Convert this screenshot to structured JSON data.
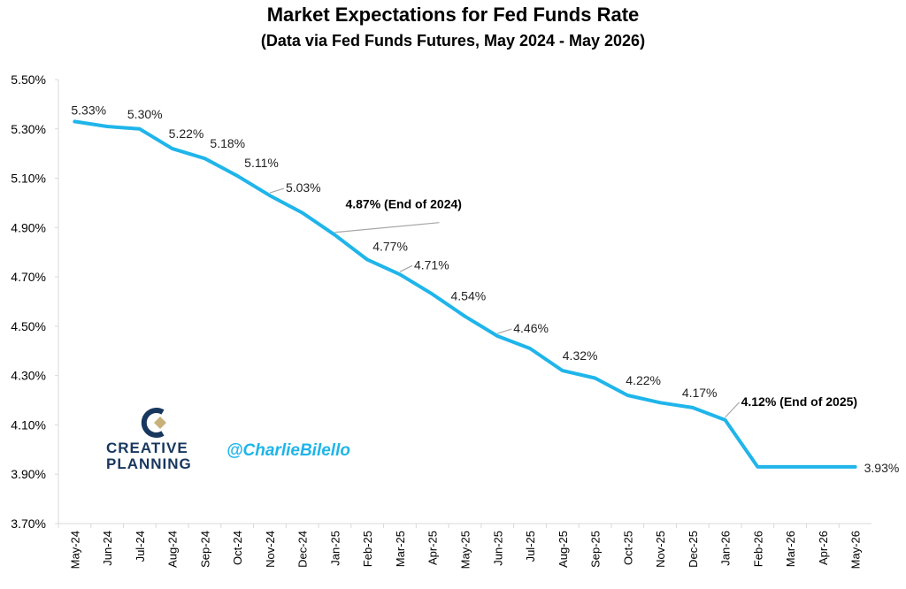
{
  "chart_data": {
    "type": "line",
    "title": "Market Expectations for Fed Funds Rate",
    "subtitle": "(Data via Fed Funds Futures, May 2024 - May 2026)",
    "xlabel": "",
    "ylabel": "",
    "categories": [
      "May-24",
      "Jun-24",
      "Jul-24",
      "Aug-24",
      "Sep-24",
      "Oct-24",
      "Nov-24",
      "Dec-24",
      "Jan-25",
      "Feb-25",
      "Mar-25",
      "Apr-25",
      "May-25",
      "Jun-25",
      "Jul-25",
      "Aug-25",
      "Sep-25",
      "Oct-25",
      "Nov-25",
      "Dec-25",
      "Jan-26",
      "Feb-26",
      "Mar-26",
      "Apr-26",
      "May-26"
    ],
    "series": [
      {
        "values": [
          5.33,
          5.31,
          5.3,
          5.22,
          5.18,
          5.11,
          5.03,
          4.96,
          4.87,
          4.77,
          4.71,
          4.63,
          4.54,
          4.46,
          4.41,
          4.32,
          4.29,
          4.22,
          4.19,
          4.17,
          4.12,
          3.93,
          3.93,
          3.93,
          3.93
        ]
      }
    ],
    "ylim": [
      3.7,
      5.5
    ],
    "yticks": [
      "3.70%",
      "3.90%",
      "4.10%",
      "4.30%",
      "4.50%",
      "4.70%",
      "4.90%",
      "5.10%",
      "5.30%",
      "5.50%"
    ],
    "line_color": "#1fb5ea",
    "grid": false,
    "data_labels": [
      {
        "index": 0,
        "text": "5.33%",
        "bold": false
      },
      {
        "index": 2,
        "text": "5.30%",
        "bold": false
      },
      {
        "index": 3,
        "text": "5.22%",
        "bold": false
      },
      {
        "index": 4,
        "text": "5.18%",
        "bold": false
      },
      {
        "index": 5,
        "text": "5.11%",
        "bold": false
      },
      {
        "index": 6,
        "text": "5.03%",
        "bold": false
      },
      {
        "index": 8,
        "text": "4.87% (End of 2024)",
        "bold": true
      },
      {
        "index": 9,
        "text": "4.77%",
        "bold": false
      },
      {
        "index": 10,
        "text": "4.71%",
        "bold": false
      },
      {
        "index": 12,
        "text": "4.54%",
        "bold": false
      },
      {
        "index": 13,
        "text": "4.46%",
        "bold": false
      },
      {
        "index": 15,
        "text": "4.32%",
        "bold": false
      },
      {
        "index": 17,
        "text": "4.22%",
        "bold": false
      },
      {
        "index": 19,
        "text": "4.17%",
        "bold": false
      },
      {
        "index": 20,
        "text": "4.12% (End of 2025)",
        "bold": true
      },
      {
        "index": 24,
        "text": "3.93%",
        "bold": false
      }
    ]
  },
  "branding": {
    "logo_line1": "CREATIVE",
    "logo_line2": "PLANNING",
    "handle": "@CharlieBilello"
  }
}
